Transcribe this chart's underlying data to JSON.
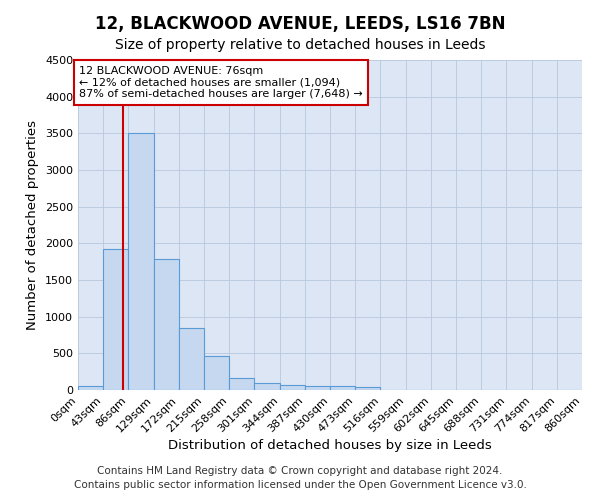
{
  "title": "12, BLACKWOOD AVENUE, LEEDS, LS16 7BN",
  "subtitle": "Size of property relative to detached houses in Leeds",
  "xlabel": "Distribution of detached houses by size in Leeds",
  "ylabel": "Number of detached properties",
  "footer_line1": "Contains HM Land Registry data © Crown copyright and database right 2024.",
  "footer_line2": "Contains public sector information licensed under the Open Government Licence v3.0.",
  "annotation_title": "12 BLACKWOOD AVENUE: 76sqm",
  "annotation_line1": "← 12% of detached houses are smaller (1,094)",
  "annotation_line2": "87% of semi-detached houses are larger (7,648) →",
  "bin_edges": [
    0,
    43,
    86,
    129,
    172,
    215,
    258,
    301,
    344,
    387,
    430,
    473,
    516,
    559,
    602,
    645,
    688,
    731,
    774,
    817,
    860
  ],
  "bar_heights": [
    50,
    1920,
    3500,
    1780,
    840,
    460,
    165,
    100,
    75,
    60,
    55,
    35,
    0,
    0,
    0,
    0,
    0,
    0,
    0,
    0
  ],
  "bar_color": "#c5d8f0",
  "bar_edge_color": "#5b9bd5",
  "vline_color": "#cc0000",
  "vline_x": 76,
  "annotation_box_color": "#cc0000",
  "background_color": "#dce6f5",
  "ylim": [
    0,
    4500
  ],
  "yticks": [
    0,
    500,
    1000,
    1500,
    2000,
    2500,
    3000,
    3500,
    4000,
    4500
  ],
  "grid_color": "#b8c8de",
  "title_fontsize": 12,
  "subtitle_fontsize": 10,
  "axis_label_fontsize": 9.5,
  "tick_fontsize": 8,
  "footer_fontsize": 7.5,
  "annotation_fontsize": 8
}
